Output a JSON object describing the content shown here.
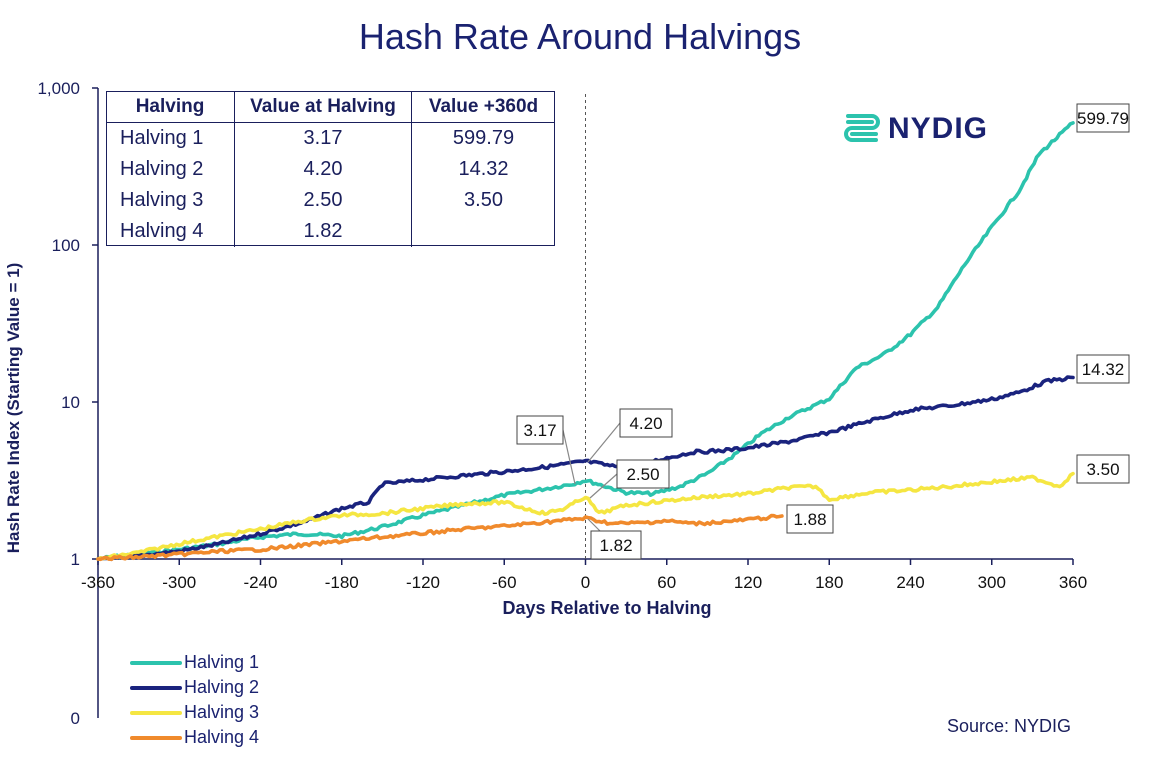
{
  "title": "Hash Rate Around Halvings",
  "source": "Source: NYDIG",
  "logo": {
    "text": "NYDIG",
    "icon": "nydig-logo-icon",
    "color": "#2cc3ad"
  },
  "table": {
    "headers": [
      "Halving",
      "Value at Halving",
      "Value +360d"
    ],
    "rows": [
      [
        "Halving 1",
        "3.17",
        "599.79"
      ],
      [
        "Halving 2",
        "4.20",
        "14.32"
      ],
      [
        "Halving 3",
        "2.50",
        "3.50"
      ],
      [
        "Halving 4",
        "1.82",
        ""
      ]
    ]
  },
  "chart_data": {
    "type": "line",
    "title": "Hash Rate Around Halvings",
    "xlabel": "Days Relative to Halving",
    "ylabel": "Hash Rate Index (Starting Value = 1)",
    "x_ticks": [
      "-360",
      "-300",
      "-240",
      "-180",
      "-120",
      "-60",
      "0",
      "60",
      "120",
      "180",
      "240",
      "300",
      "360"
    ],
    "y_ticks": [
      "1",
      "10",
      "100",
      "1,000"
    ],
    "y_zero_label": "0",
    "xlim": [
      -360,
      360
    ],
    "ylim": [
      1,
      1000
    ],
    "y_scale": "log",
    "vertical_reference_line_x": 0,
    "legend_position": "bottom-left",
    "series": [
      {
        "name": "Halving 1",
        "color": "#2cc3ad",
        "points": [
          [
            -360,
            1.0
          ],
          [
            -330,
            1.08
          ],
          [
            -300,
            1.15
          ],
          [
            -270,
            1.25
          ],
          [
            -240,
            1.38
          ],
          [
            -210,
            1.45
          ],
          [
            -180,
            1.4
          ],
          [
            -150,
            1.6
          ],
          [
            -120,
            1.9
          ],
          [
            -90,
            2.2
          ],
          [
            -60,
            2.55
          ],
          [
            -30,
            2.8
          ],
          [
            -10,
            3.0
          ],
          [
            0,
            3.17
          ],
          [
            15,
            2.9
          ],
          [
            30,
            2.65
          ],
          [
            50,
            2.6
          ],
          [
            70,
            2.9
          ],
          [
            90,
            3.5
          ],
          [
            110,
            4.6
          ],
          [
            130,
            6.3
          ],
          [
            150,
            8.0
          ],
          [
            180,
            10.5
          ],
          [
            200,
            16.5
          ],
          [
            220,
            20
          ],
          [
            240,
            27
          ],
          [
            260,
            40
          ],
          [
            280,
            75
          ],
          [
            300,
            130
          ],
          [
            320,
            220
          ],
          [
            335,
            380
          ],
          [
            350,
            500
          ],
          [
            360,
            599.79
          ]
        ]
      },
      {
        "name": "Halving 2",
        "color": "#1a237e",
        "points": [
          [
            -360,
            1.0
          ],
          [
            -330,
            1.05
          ],
          [
            -300,
            1.12
          ],
          [
            -270,
            1.25
          ],
          [
            -240,
            1.45
          ],
          [
            -210,
            1.7
          ],
          [
            -180,
            2.1
          ],
          [
            -160,
            2.3
          ],
          [
            -150,
            3.0
          ],
          [
            -120,
            3.2
          ],
          [
            -90,
            3.4
          ],
          [
            -60,
            3.6
          ],
          [
            -30,
            3.85
          ],
          [
            0,
            4.2
          ],
          [
            20,
            3.9
          ],
          [
            40,
            4.0
          ],
          [
            60,
            4.4
          ],
          [
            80,
            4.8
          ],
          [
            100,
            4.9
          ],
          [
            120,
            5.1
          ],
          [
            150,
            5.6
          ],
          [
            180,
            6.4
          ],
          [
            210,
            7.6
          ],
          [
            240,
            8.9
          ],
          [
            270,
            9.5
          ],
          [
            300,
            10.4
          ],
          [
            320,
            11.5
          ],
          [
            340,
            13.5
          ],
          [
            360,
            14.32
          ]
        ]
      },
      {
        "name": "Halving 3",
        "color": "#f5e642",
        "points": [
          [
            -360,
            1.0
          ],
          [
            -330,
            1.1
          ],
          [
            -300,
            1.25
          ],
          [
            -270,
            1.4
          ],
          [
            -240,
            1.55
          ],
          [
            -210,
            1.75
          ],
          [
            -180,
            1.9
          ],
          [
            -150,
            1.95
          ],
          [
            -120,
            2.1
          ],
          [
            -90,
            2.25
          ],
          [
            -60,
            2.3
          ],
          [
            -45,
            2.1
          ],
          [
            -30,
            1.95
          ],
          [
            -15,
            2.1
          ],
          [
            0,
            2.5
          ],
          [
            10,
            1.95
          ],
          [
            30,
            2.2
          ],
          [
            60,
            2.35
          ],
          [
            90,
            2.5
          ],
          [
            120,
            2.6
          ],
          [
            150,
            2.85
          ],
          [
            170,
            2.9
          ],
          [
            180,
            2.4
          ],
          [
            210,
            2.65
          ],
          [
            240,
            2.75
          ],
          [
            270,
            2.9
          ],
          [
            300,
            3.1
          ],
          [
            330,
            3.3
          ],
          [
            350,
            2.9
          ],
          [
            360,
            3.5
          ]
        ]
      },
      {
        "name": "Halving 4",
        "color": "#f08a2c",
        "points": [
          [
            -360,
            1.0
          ],
          [
            -330,
            1.03
          ],
          [
            -300,
            1.07
          ],
          [
            -270,
            1.12
          ],
          [
            -240,
            1.15
          ],
          [
            -210,
            1.22
          ],
          [
            -180,
            1.3
          ],
          [
            -150,
            1.38
          ],
          [
            -120,
            1.46
          ],
          [
            -90,
            1.55
          ],
          [
            -60,
            1.62
          ],
          [
            -30,
            1.72
          ],
          [
            0,
            1.82
          ],
          [
            20,
            1.68
          ],
          [
            40,
            1.7
          ],
          [
            60,
            1.75
          ],
          [
            80,
            1.68
          ],
          [
            100,
            1.72
          ],
          [
            120,
            1.78
          ],
          [
            145,
            1.88
          ]
        ]
      }
    ],
    "annotations": [
      {
        "series": "Halving 1",
        "text": "3.17"
      },
      {
        "series": "Halving 2",
        "text": "4.20"
      },
      {
        "series": "Halving 3",
        "text": "2.50"
      },
      {
        "series": "Halving 4",
        "text": "1.82"
      },
      {
        "series": "Halving 1",
        "text": "599.79"
      },
      {
        "series": "Halving 2",
        "text": "14.32"
      },
      {
        "series": "Halving 3",
        "text": "3.50"
      },
      {
        "series": "Halving 4",
        "text": "1.88"
      }
    ]
  }
}
